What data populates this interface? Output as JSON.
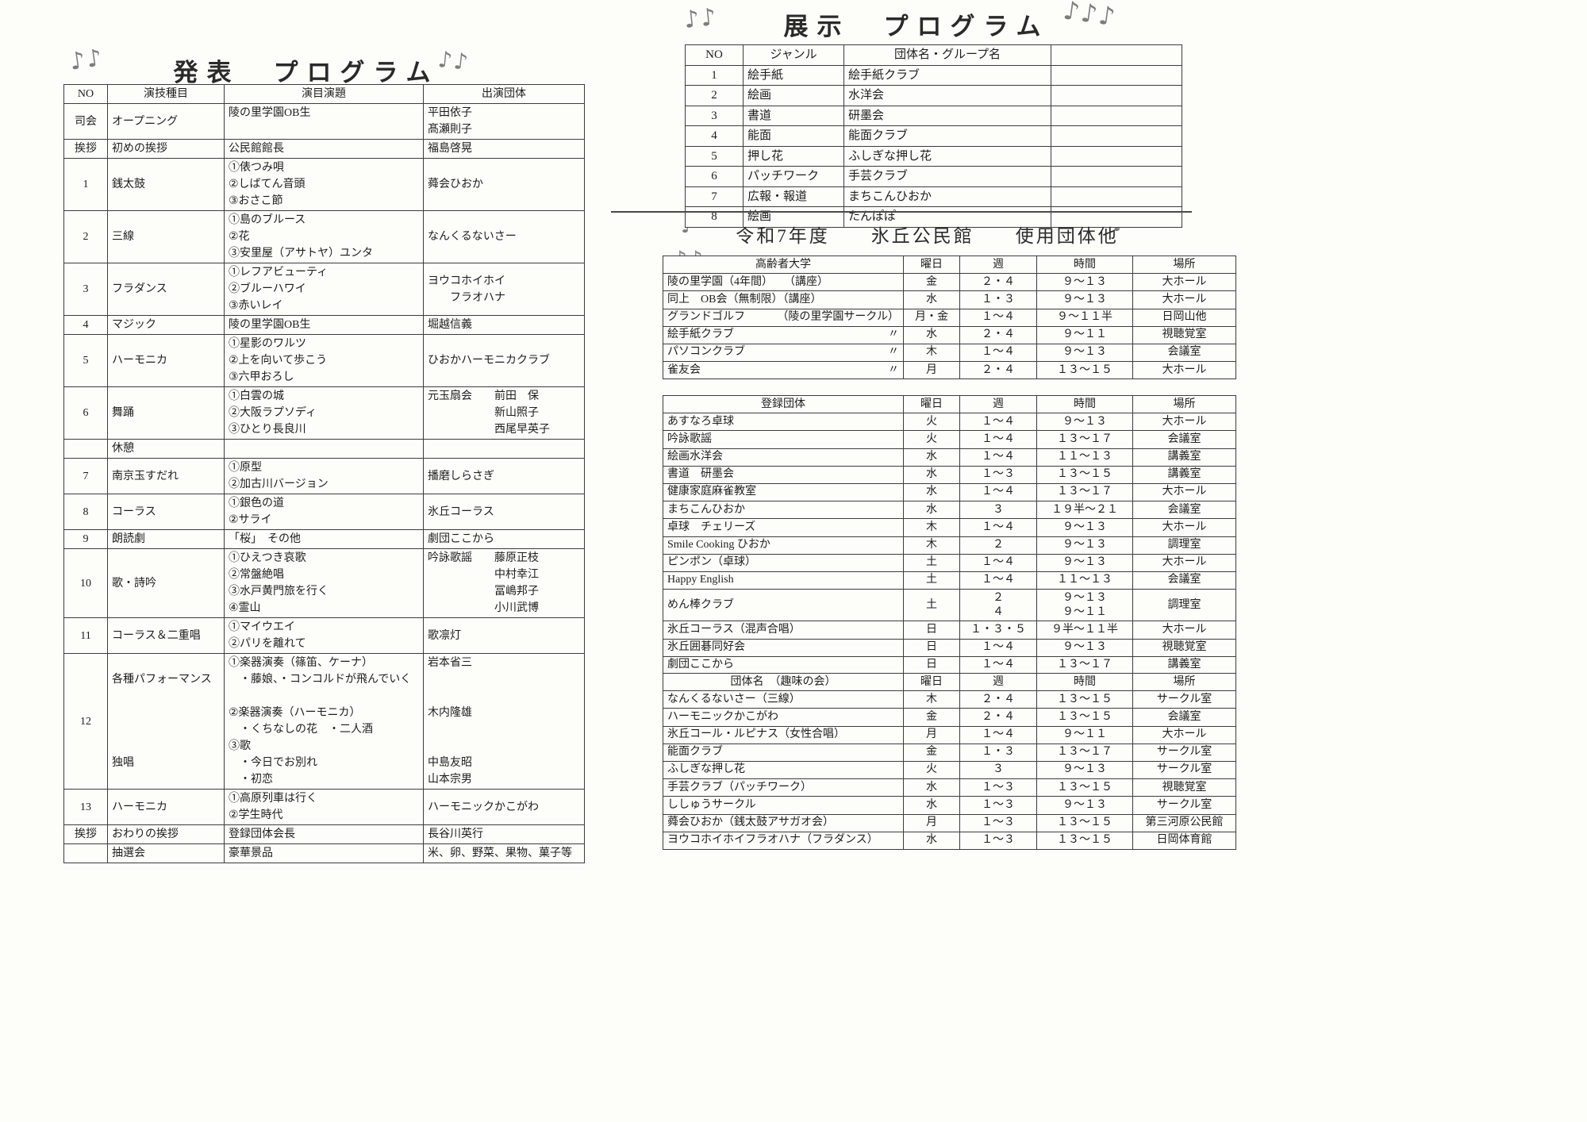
{
  "colors": {
    "ink": "#1d1d1d",
    "table_border": "#3c3c3c",
    "note_gray": "#7d7d7d",
    "paper": "#fdfdfa"
  },
  "decorations": [
    "♪♪",
    "♪♪",
    "♪♪",
    "♪♪♪",
    "♪",
    "♪",
    "♪♪"
  ],
  "left_page": {
    "title": "発表　プログラム",
    "table": {
      "headers": [
        "NO",
        "演技種目",
        "演目演題",
        "出演団体"
      ],
      "rows": [
        {
          "no": "司会",
          "type": "オープニング",
          "program": "陵の里学園OB生",
          "performers": "平田依子\n髙瀬則子"
        },
        {
          "no": "挨拶",
          "type": "初めの挨拶",
          "program": "公民館館長",
          "performers": "福島啓晃"
        },
        {
          "no": "1",
          "type": "銭太鼓",
          "program": "①俵つみ唄\n②しばてん音頭\n③おさこ節",
          "performers": "蕣会ひおか"
        },
        {
          "no": "2",
          "type": "三線",
          "program": "①島のブルース\n②花\n③安里屋（アサトヤ）ユンタ",
          "performers": "なんくるないさー"
        },
        {
          "no": "3",
          "type": "フラダンス",
          "program": "①レフアビューティ\n②ブルーハワイ\n③赤いレイ",
          "performers": "ヨウコホイホイ\n　　フラオハナ"
        },
        {
          "no": "4",
          "type": "マジック",
          "program": "陵の里学園OB生",
          "performers": "堀越信義"
        },
        {
          "no": "5",
          "type": "ハーモニカ",
          "program": "①星影のワルツ\n②上を向いて歩こう\n③六甲おろし",
          "performers": "ひおかハーモニカクラブ"
        },
        {
          "no": "6",
          "type": "舞踊",
          "program": "①白雲の城\n②大阪ラプソディ\n③ひとり長良川",
          "performers": "元玉扇会　　前田　保\n　　　　　　新山照子\n　　　　　　西尾早英子"
        },
        {
          "no": "",
          "type": "休憩",
          "program": "",
          "performers": ""
        },
        {
          "no": "7",
          "type": "南京玉すだれ",
          "program": "①原型\n②加古川バージョン",
          "performers": "播磨しらさぎ"
        },
        {
          "no": "8",
          "type": "コーラス",
          "program": "①銀色の道\n②サライ",
          "performers": "氷丘コーラス"
        },
        {
          "no": "9",
          "type": "朗読劇",
          "program": "「桜」　その他",
          "performers": "劇団ここから"
        },
        {
          "no": "10",
          "type": "歌・詩吟",
          "program": "①ひえつき哀歌\n②常盤絶唱\n③水戸黄門旅を行く\n④霊山",
          "performers": "吟詠歌謡　　藤原正枝\n　　　　　　中村幸江\n　　　　　　冨嶋邦子\n　　　　　　小川武博"
        },
        {
          "no": "11",
          "type": "コーラス＆二重唱",
          "program": "①マイウエイ\n②パリを離れて",
          "performers": "歌凛灯"
        },
        {
          "no": "12",
          "type": "各種パフォーマンス\n\n\n\n\n独唱",
          "program": "①楽器演奏（篠笛、ケーナ）\n　・藤娘、・コンコルドが飛んでいく\n\n②楽器演奏（ハーモニカ）\n　・くちなしの花　・二人酒\n③歌\n　・今日でお別れ\n　・初恋",
          "performers": "岩本省三\n\n\n木内隆雄\n\n\n中島友昭\n山本宗男"
        },
        {
          "no": "13",
          "type": "ハーモニカ",
          "program": "①高原列車は行く\n②学生時代",
          "performers": "ハーモニックかこがわ"
        },
        {
          "no": "挨拶",
          "type": "おわりの挨拶",
          "program": "登録団体会長",
          "performers": "長谷川英行"
        },
        {
          "no": "",
          "type": "抽選会",
          "program": "豪華景品",
          "performers": "米、卵、野菜、果物、菓子等"
        }
      ]
    }
  },
  "right_page": {
    "exhibit": {
      "title": "展示　プログラム",
      "headers": [
        "NO",
        "ジャンル",
        "団体名・グループ名",
        ""
      ],
      "rows": [
        {
          "no": "1",
          "genre": "絵手紙",
          "group": "絵手紙クラブ"
        },
        {
          "no": "2",
          "genre": "絵画",
          "group": "水洋会"
        },
        {
          "no": "3",
          "genre": "書道",
          "group": "研墨会"
        },
        {
          "no": "4",
          "genre": "能面",
          "group": "能面クラブ"
        },
        {
          "no": "5",
          "genre": "押し花",
          "group": "ふしぎな押し花"
        },
        {
          "no": "6",
          "genre": "パッチワーク",
          "group": "手芸クラブ"
        },
        {
          "no": "7",
          "genre": "広報・報道",
          "group": "まちこんひおか"
        },
        {
          "no": "8",
          "genre": "絵画",
          "group": "たんぽぽ"
        }
      ]
    },
    "section_title": "令和7年度　　氷丘公民館　　使用団体他",
    "tables": [
      {
        "header": "高齢者大学",
        "cols": [
          "曜日",
          "週",
          "時間",
          "場所"
        ],
        "rows": [
          {
            "name": "陵の里学園（4年間）　　（講座）",
            "note": "",
            "day": "金",
            "week": "２・４",
            "time": "９～１３",
            "place": "大ホール"
          },
          {
            "name": "同上　OB会（無制限）（講座）",
            "note": "",
            "day": "水",
            "week": "１・３",
            "time": "９～１３",
            "place": "大ホール"
          },
          {
            "name": "グランドゴルフ",
            "note": "（陵の里学園サークル）",
            "day": "月・金",
            "week": "１～４",
            "time": "９～１１半",
            "place": "日岡山他"
          },
          {
            "name": "絵手紙クラブ",
            "note": "〃",
            "day": "水",
            "week": "２・４",
            "time": "９～１１",
            "place": "視聴覚室"
          },
          {
            "name": "パソコンクラブ",
            "note": "〃",
            "day": "木",
            "week": "１～４",
            "time": "９～１３",
            "place": "会議室"
          },
          {
            "name": "雀友会",
            "note": "〃",
            "day": "月",
            "week": "２・４",
            "time": "１３～１５",
            "place": "大ホール"
          }
        ]
      },
      {
        "header": "登録団体",
        "cols": [
          "曜日",
          "週",
          "時間",
          "場所"
        ],
        "rows": [
          {
            "name": "あすなろ卓球",
            "note": "",
            "day": "火",
            "week": "１～４",
            "time": "９～１３",
            "place": "大ホール"
          },
          {
            "name": "吟詠歌謡",
            "note": "",
            "day": "火",
            "week": "１～４",
            "time": "１３～１７",
            "place": "会議室"
          },
          {
            "name": "絵画水洋会",
            "note": "",
            "day": "水",
            "week": "１～４",
            "time": "１１～１３",
            "place": "講義室"
          },
          {
            "name": "書道　研墨会",
            "note": "",
            "day": "水",
            "week": "１～３",
            "time": "１３～１５",
            "place": "講義室"
          },
          {
            "name": "健康家庭麻雀教室",
            "note": "",
            "day": "水",
            "week": "１～４",
            "time": "１３～１７",
            "place": "大ホール"
          },
          {
            "name": "まちこんひおか",
            "note": "",
            "day": "水",
            "week": "３",
            "time": "１９半～２１",
            "place": "会議室"
          },
          {
            "name": "卓球　チェリーズ",
            "note": "",
            "day": "木",
            "week": "１～４",
            "time": "９～１３",
            "place": "大ホール"
          },
          {
            "name": "Smile Cooking ひおか",
            "note": "",
            "day": "木",
            "week": "２",
            "time": "９～１３",
            "place": "調理室"
          },
          {
            "name": "ピンポン（卓球）",
            "note": "",
            "day": "土",
            "week": "１～４",
            "time": "９～１３",
            "place": "大ホール"
          },
          {
            "name": "Happy English",
            "note": "",
            "day": "土",
            "week": "１～４",
            "time": "１１～１３",
            "place": "会議室"
          },
          {
            "name": "めん棒クラブ",
            "note": "",
            "day": "土",
            "week": "２\n４",
            "time": "９～１３\n９～１１",
            "place": "調理室"
          },
          {
            "name": "氷丘コーラス（混声合唱）",
            "note": "",
            "day": "日",
            "week": "１・３・５",
            "time": "９半～１１半",
            "place": "大ホール"
          },
          {
            "name": "氷丘囲碁同好会",
            "note": "",
            "day": "日",
            "week": "１～４",
            "time": "９～１３",
            "place": "視聴覚室"
          },
          {
            "name": "劇団ここから",
            "note": "",
            "day": "日",
            "week": "１～４",
            "time": "１３～１７",
            "place": "講義室"
          }
        ]
      },
      {
        "header": "団体名　（趣味の会）",
        "cols": [
          "曜日",
          "週",
          "時間",
          "場所"
        ],
        "rows": [
          {
            "name": "なんくるないさー（三線）",
            "note": "",
            "day": "木",
            "week": "２・４",
            "time": "１３～１５",
            "place": "サークル室"
          },
          {
            "name": "ハーモニックかこがわ",
            "note": "",
            "day": "金",
            "week": "２・４",
            "time": "１３～１５",
            "place": "会議室"
          },
          {
            "name": "氷丘コール・ルピナス（女性合唱）",
            "note": "",
            "day": "月",
            "week": "１～４",
            "time": "９～１１",
            "place": "大ホール"
          },
          {
            "name": "能面クラブ",
            "note": "",
            "day": "金",
            "week": "１・３",
            "time": "１３～１７",
            "place": "サークル室"
          },
          {
            "name": "ふしぎな押し花",
            "note": "",
            "day": "火",
            "week": "３",
            "time": "９～１３",
            "place": "サークル室"
          },
          {
            "name": "手芸クラブ（パッチワーク）",
            "note": "",
            "day": "水",
            "week": "１～３",
            "time": "１３～１５",
            "place": "視聴覚室"
          },
          {
            "name": "ししゅうサークル",
            "note": "",
            "day": "水",
            "week": "１～３",
            "time": "９～１３",
            "place": "サークル室"
          },
          {
            "name": "蕣会ひおか（銭太鼓アサガオ会）",
            "note": "",
            "day": "月",
            "week": "１～３",
            "time": "１３～１５",
            "place": "第三河原公民館"
          },
          {
            "name": "ヨウコホイホイフラオハナ（フラダンス）",
            "note": "",
            "day": "水",
            "week": "１～３",
            "time": "１３～１５",
            "place": "日岡体育館"
          }
        ]
      }
    ]
  }
}
